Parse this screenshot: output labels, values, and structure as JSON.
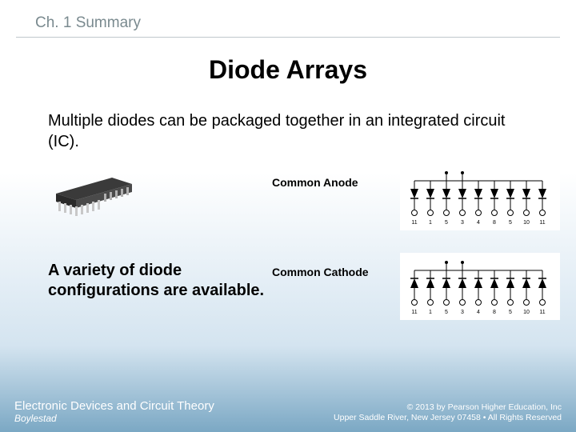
{
  "header": {
    "chapter": "Ch. 1 Summary"
  },
  "title": "Diode Arrays",
  "body": "Multiple diodes can be packaged together in an integrated circuit (IC).",
  "labels": {
    "common_anode": "Common Anode",
    "common_cathode": "Common Cathode"
  },
  "subheading": "A variety of diode configurations are available.",
  "footer": {
    "book_title": "Electronic Devices and Circuit Theory",
    "author": "Boylestad",
    "copyright_line1": "© 2013 by Pearson Higher Education, Inc",
    "copyright_line2": "Upper Saddle River, New Jersey 07458 • All Rights Reserved"
  },
  "ic_chip": {
    "body_color": "#4a4a4a",
    "pin_color": "#c8c8c8",
    "pin_count_per_side": 8
  },
  "diode_diagram": {
    "pin_labels": [
      "11",
      "1",
      "5",
      "3",
      "4",
      "8",
      "5",
      "10",
      "11"
    ],
    "line_color": "#000000",
    "fill_color": "#000000",
    "background": "#ffffff",
    "pin_count": 9,
    "top_dots": [
      2,
      3
    ]
  },
  "colors": {
    "header_text": "#7a8a8f",
    "header_rule": "#c0c8cc",
    "title_text": "#000000",
    "body_text": "#000000",
    "footer_text": "#ffffff",
    "bg_top": "#ffffff",
    "bg_bottom": "#7ba8c4"
  },
  "typography": {
    "header_fontsize": 19,
    "title_fontsize": 32,
    "body_fontsize": 20,
    "config_label_fontsize": 14,
    "subheading_fontsize": 20,
    "footer_title_fontsize": 15,
    "footer_sub_fontsize": 12,
    "footer_right_fontsize": 10.5
  }
}
